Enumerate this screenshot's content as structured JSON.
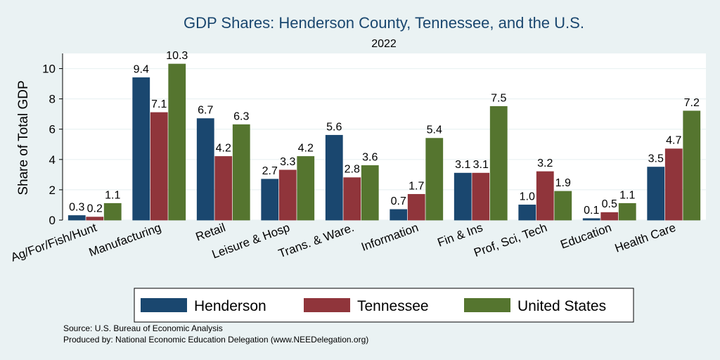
{
  "chart_data": {
    "type": "bar",
    "title": "GDP Shares: Henderson County, Tennessee, and the U.S.",
    "subtitle": "2022",
    "xlabel": "",
    "ylabel": "Share of Total GDP",
    "ylim": [
      0,
      11
    ],
    "yticks": [
      0,
      2,
      4,
      6,
      8,
      10
    ],
    "grid": true,
    "legend_position": "bottom",
    "categories": [
      "Ag/For/Fish/Hunt",
      "Manufacturing",
      "Retail",
      "Leisure & Hosp",
      "Trans. & Ware.",
      "Information",
      "Fin & Ins",
      "Prof, Sci, Tech",
      "Education",
      "Health Care"
    ],
    "series": [
      {
        "name": "Henderson",
        "color": "#1a476f",
        "values": [
          0.3,
          9.4,
          6.7,
          2.7,
          5.6,
          0.7,
          3.1,
          1.0,
          0.1,
          3.5
        ]
      },
      {
        "name": "Tennessee",
        "color": "#90353b",
        "values": [
          0.2,
          7.1,
          4.2,
          3.3,
          2.8,
          1.7,
          3.1,
          3.2,
          0.5,
          4.7
        ]
      },
      {
        "name": "United States",
        "color": "#55752f",
        "values": [
          1.1,
          10.3,
          6.3,
          4.2,
          3.6,
          5.4,
          7.5,
          1.9,
          1.1,
          7.2
        ]
      }
    ]
  },
  "footer": {
    "source": "Source: U.S. Bureau of Economic Analysis",
    "produced_by": "Produced by: National Economic Education Delegation (www.NEEDelegation.org)"
  },
  "colors": {
    "background": "#eaf2f3",
    "plot_background": "#ffffff",
    "grid": "#eaf2f3",
    "title": "#1a476f"
  }
}
